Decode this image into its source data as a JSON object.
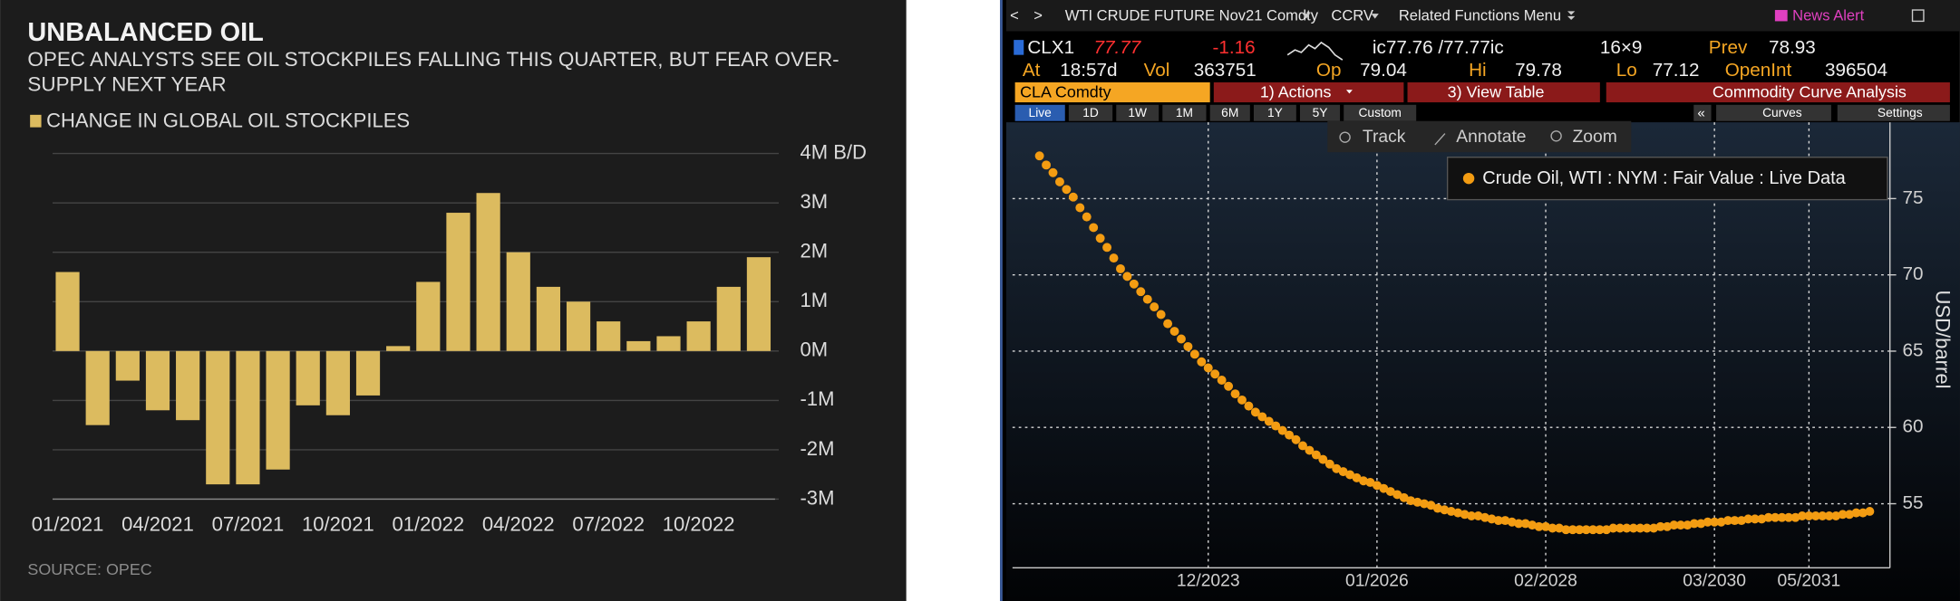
{
  "chart_data": [
    {
      "type": "bar",
      "title": "UNBALANCED OIL",
      "subtitle": "OPEC ANALYSTS SEE OIL STOCKPILES FALLING THIS QUARTER, BUT FEAR OVER-SUPPLY NEXT YEAR",
      "source": "SOURCE: OPEC",
      "categories": [
        "01/2021",
        null,
        null,
        "04/2021",
        null,
        null,
        "07/2021",
        null,
        null,
        "10/2021",
        null,
        null,
        "01/2022",
        null,
        null,
        "04/2022",
        null,
        null,
        "07/2022",
        null,
        null,
        "10/2022",
        null,
        null
      ],
      "series": [
        {
          "name": "CHANGE IN GLOBAL OIL STOCKPILES",
          "color": "#dcbb5f",
          "values": [
            1.6,
            -1.5,
            -0.6,
            -1.2,
            -1.4,
            -2.7,
            -2.7,
            -2.4,
            -1.1,
            -1.3,
            -0.9,
            0.1,
            1.4,
            2.8,
            3.2,
            2.0,
            1.3,
            1.0,
            0.6,
            0.2,
            0.3,
            0.6,
            1.3,
            1.9
          ]
        }
      ],
      "ylim": [
        -3,
        4
      ],
      "yticks": [
        {
          "value": 4,
          "label": "4M B/D"
        },
        {
          "value": 3,
          "label": "3M"
        },
        {
          "value": 2,
          "label": "2M"
        },
        {
          "value": 1,
          "label": "1M"
        },
        {
          "value": 0,
          "label": "0M"
        },
        {
          "value": -1,
          "label": "-1M"
        },
        {
          "value": -2,
          "label": "-2M"
        },
        {
          "value": -3,
          "label": "-3M"
        }
      ],
      "grid": true
    },
    {
      "type": "line",
      "marker": "dot",
      "ylabel": "USD/barrel",
      "x": [
        "2021-11",
        "2021-12",
        "2022-01",
        "2022-02",
        "2022-03",
        "2022-04",
        "2022-05",
        "2022-06",
        "2022-07",
        "2022-08",
        "2022-09",
        "2022-10",
        "2022-11",
        "2022-12",
        "2023-01",
        "2023-02",
        "2023-03",
        "2023-04",
        "2023-05",
        "2023-06",
        "2023-07",
        "2023-08",
        "2023-09",
        "2023-10",
        "2023-11",
        "2023-12",
        "2024-01",
        "2024-02",
        "2024-03",
        "2024-04",
        "2024-05",
        "2024-06",
        "2024-07",
        "2024-08",
        "2024-09",
        "2024-10",
        "2024-11",
        "2024-12",
        "2025-01",
        "2025-02",
        "2025-03",
        "2025-04",
        "2025-05",
        "2025-06",
        "2025-07",
        "2025-08",
        "2025-09",
        "2025-10",
        "2025-11",
        "2025-12",
        "2026-01",
        "2026-02",
        "2026-03",
        "2026-04",
        "2026-05",
        "2026-06",
        "2026-07",
        "2026-08",
        "2026-09",
        "2026-10",
        "2026-11",
        "2026-12",
        "2027-01",
        "2027-02",
        "2027-03",
        "2027-04",
        "2027-05",
        "2027-06",
        "2027-07",
        "2027-08",
        "2027-09",
        "2027-10",
        "2027-11",
        "2027-12",
        "2028-01",
        "2028-02",
        "2028-03",
        "2028-04",
        "2028-05",
        "2028-06",
        "2028-07",
        "2028-08",
        "2028-09",
        "2028-10",
        "2028-11",
        "2028-12",
        "2029-01",
        "2029-02",
        "2029-03",
        "2029-04",
        "2029-05",
        "2029-06",
        "2029-07",
        "2029-08",
        "2029-09",
        "2029-10",
        "2029-11",
        "2029-12",
        "2030-01",
        "2030-02",
        "2030-03",
        "2030-04",
        "2030-05",
        "2030-06",
        "2030-07",
        "2030-08",
        "2030-09",
        "2030-10",
        "2030-11",
        "2030-12",
        "2031-01",
        "2031-02",
        "2031-03",
        "2031-04",
        "2031-05",
        "2031-06",
        "2031-07",
        "2031-08",
        "2031-09",
        "2031-10",
        "2031-11",
        "2031-12",
        "2032-01",
        "2032-02"
      ],
      "series": [
        {
          "name": "Crude Oil, WTI : NYM : Fair Value : Live Data",
          "color": "#f39c12",
          "values": [
            77.8,
            77.2,
            76.7,
            76.1,
            75.6,
            75.1,
            74.4,
            73.8,
            73.1,
            72.4,
            71.8,
            71.1,
            70.4,
            69.9,
            69.4,
            68.9,
            68.4,
            67.9,
            67.4,
            66.8,
            66.3,
            65.8,
            65.3,
            64.8,
            64.3,
            63.9,
            63.5,
            63.1,
            62.7,
            62.2,
            61.8,
            61.4,
            61.0,
            60.7,
            60.4,
            60.1,
            59.8,
            59.5,
            59.2,
            58.8,
            58.5,
            58.2,
            57.9,
            57.6,
            57.3,
            57.1,
            56.9,
            56.7,
            56.5,
            56.4,
            56.2,
            56.0,
            55.8,
            55.6,
            55.4,
            55.2,
            55.1,
            55.0,
            54.9,
            54.7,
            54.6,
            54.5,
            54.4,
            54.3,
            54.2,
            54.2,
            54.1,
            54.0,
            53.9,
            53.9,
            53.8,
            53.7,
            53.7,
            53.6,
            53.5,
            53.5,
            53.4,
            53.4,
            53.3,
            53.3,
            53.3,
            53.3,
            53.3,
            53.3,
            53.3,
            53.4,
            53.4,
            53.4,
            53.4,
            53.4,
            53.4,
            53.4,
            53.5,
            53.5,
            53.6,
            53.6,
            53.6,
            53.7,
            53.7,
            53.8,
            53.8,
            53.8,
            53.9,
            53.9,
            53.9,
            54.0,
            54.0,
            54.0,
            54.1,
            54.1,
            54.1,
            54.1,
            54.1,
            54.2,
            54.2,
            54.2,
            54.2,
            54.2,
            54.2,
            54.3,
            54.3,
            54.4,
            54.4,
            54.5
          ]
        }
      ],
      "xlim": [
        "2021-07",
        "2032-05"
      ],
      "xticks": [
        {
          "value": "2023-12",
          "label": "12/2023"
        },
        {
          "value": "2026-01",
          "label": "01/2026"
        },
        {
          "value": "2028-02",
          "label": "02/2028"
        },
        {
          "value": "2030-03",
          "label": "03/2030"
        },
        {
          "value": "2031-05",
          "label": "05/2031"
        }
      ],
      "ylim": [
        50.8,
        80
      ],
      "yticks": [
        55,
        60,
        65,
        70,
        75
      ],
      "grid": true
    }
  ],
  "terminal": {
    "nav": {
      "back": "<",
      "forward": ">",
      "security": "WTI CRUDE FUTURE Nov21 Comdty",
      "function": "CCRV",
      "menu": "Related Functions Menu",
      "alert": "News Alert"
    },
    "quote": {
      "ticker": "CLX1",
      "last": "77.77",
      "change": "-1.16",
      "bid_ask": "ic77.76 /77.77ic",
      "size": "16×9",
      "prev_label": "Prev",
      "prev": "78.93",
      "at_label": "At",
      "time": "18:57d",
      "vol_label": "Vol",
      "vol": "363751",
      "open_label": "Op",
      "open": "79.04",
      "high_label": "Hi",
      "high": "79.78",
      "low_label": "Lo",
      "low": "77.12",
      "oi_label": "OpenInt",
      "oi": "396504"
    },
    "menu": {
      "security": "CLA Comdty",
      "actions": "1) Actions",
      "table": "3) View Table",
      "title": "Commodity Curve Analysis"
    },
    "ranges": [
      "Live",
      "1D",
      "1W",
      "1M",
      "6M",
      "1Y",
      "5Y",
      "Custom"
    ],
    "tools": {
      "collapse": "«",
      "curves": "Curves",
      "settings": "Settings",
      "track": "Track",
      "annotate": "Annotate",
      "zoom": "Zoom"
    }
  }
}
